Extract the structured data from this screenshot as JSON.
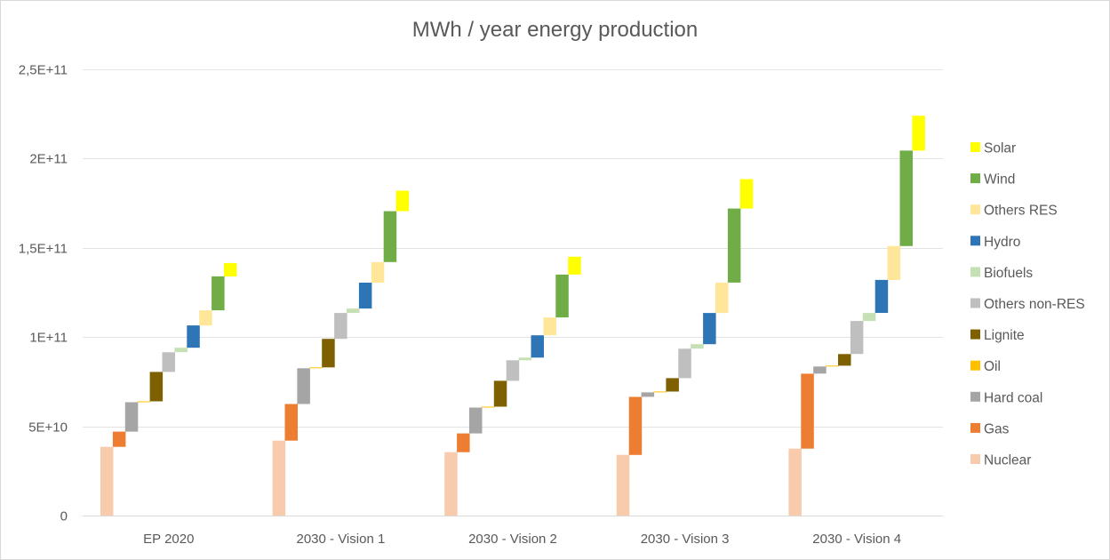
{
  "chart_data": {
    "type": "bar",
    "subtype": "stacked-waterfall",
    "title": "MWh / year energy production",
    "xlabel": "",
    "ylabel": "",
    "ylim": [
      0,
      250000000000
    ],
    "yticks": [
      {
        "value": 0,
        "label": "0"
      },
      {
        "value": 50000000000,
        "label": "5E+10"
      },
      {
        "value": 100000000000,
        "label": "1E+11"
      },
      {
        "value": 150000000000,
        "label": "1,5E+11"
      },
      {
        "value": 200000000000,
        "label": "2E+11"
      },
      {
        "value": 250000000000,
        "label": "2,5E+11"
      }
    ],
    "grid": true,
    "legend_position": "right",
    "categories": [
      "EP 2020",
      "2030 - Vision 1",
      "2030 - Vision 2",
      "2030 - Vision 3",
      "2030 - Vision 4"
    ],
    "series": [
      {
        "name": "Nuclear",
        "color": "#f8cbad",
        "values": [
          38500000000,
          42000000000,
          35500000000,
          34000000000,
          37500000000
        ]
      },
      {
        "name": "Gas",
        "color": "#ed7d31",
        "values": [
          8500000000,
          20500000000,
          10500000000,
          32500000000,
          42000000000
        ]
      },
      {
        "name": "Hard coal",
        "color": "#a5a5a5",
        "values": [
          16500000000,
          20000000000,
          14500000000,
          2500000000,
          4000000000
        ]
      },
      {
        "name": "Oil",
        "color": "#ffc000",
        "values": [
          500000000,
          500000000,
          500000000,
          500000000,
          500000000
        ]
      },
      {
        "name": "Lignite",
        "color": "#7f6000",
        "values": [
          16500000000,
          16000000000,
          14500000000,
          7500000000,
          6500000000
        ]
      },
      {
        "name": "Others non-RES",
        "color": "#bfbfbf",
        "values": [
          11000000000,
          14500000000,
          11500000000,
          16500000000,
          18500000000
        ]
      },
      {
        "name": "Biofuels",
        "color": "#c5e0b4",
        "values": [
          2500000000,
          2500000000,
          1500000000,
          2500000000,
          4500000000
        ]
      },
      {
        "name": "Hydro",
        "color": "#2e75b6",
        "values": [
          12500000000,
          14500000000,
          12500000000,
          17500000000,
          18500000000
        ]
      },
      {
        "name": "Others RES",
        "color": "#ffe699",
        "values": [
          8500000000,
          11500000000,
          10000000000,
          17000000000,
          19000000000
        ]
      },
      {
        "name": "Wind",
        "color": "#70ad47",
        "values": [
          19000000000,
          28500000000,
          24000000000,
          41500000000,
          53500000000
        ]
      },
      {
        "name": "Solar",
        "color": "#ffff00",
        "values": [
          7500000000,
          11500000000,
          10000000000,
          16500000000,
          19500000000
        ]
      }
    ]
  }
}
